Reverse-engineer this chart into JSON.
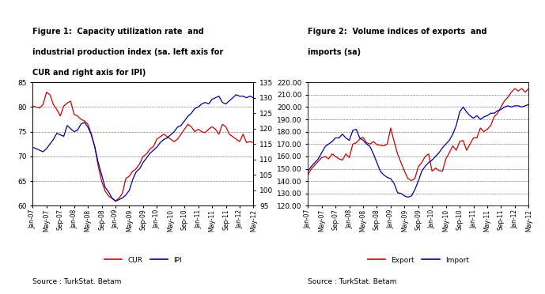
{
  "fig1": {
    "title1": "Figure 1:  Capacity utilization rate  and",
    "title2": "industrial production index (sa. left axis for",
    "title3": "CUR and right axis for IPI)",
    "source": "Source : TurkStat. Betam",
    "x_labels": [
      "Jan-07",
      "May-07",
      "Sep-07",
      "Jan-08",
      "May-08",
      "Sep-08",
      "Jan-09",
      "May-09",
      "Sep-09",
      "Jan-10",
      "May-10",
      "Sep-10",
      "Jan-11",
      "May-11",
      "Sep-11",
      "Jan-12",
      "May-12"
    ],
    "ylim_left": [
      60,
      85
    ],
    "ylim_right": [
      95,
      135
    ],
    "yticks_left": [
      60,
      65,
      70,
      75,
      80,
      85
    ],
    "yticks_right": [
      95,
      100,
      105,
      110,
      115,
      120,
      125,
      130,
      135
    ],
    "cur_color": "#cc0000",
    "ipi_color": "#000099",
    "legend_labels": [
      "CUR",
      "IPI"
    ],
    "CUR": [
      80.2,
      80.0,
      79.8,
      80.5,
      83.0,
      82.5,
      80.5,
      79.5,
      78.2,
      80.2,
      80.8,
      81.2,
      78.5,
      78.2,
      77.5,
      77.2,
      76.5,
      74.5,
      72.0,
      68.0,
      65.0,
      63.0,
      62.0,
      61.5,
      61.0,
      61.5,
      62.5,
      65.5,
      66.0,
      67.0,
      67.5,
      68.5,
      70.0,
      70.5,
      71.5,
      72.0,
      73.5,
      74.0,
      74.5,
      74.0,
      73.5,
      73.0,
      73.5,
      74.5,
      75.5,
      76.5,
      76.0,
      75.0,
      75.5,
      75.0,
      74.8,
      75.5,
      76.0,
      75.5,
      74.5,
      76.5,
      76.0,
      74.5,
      74.0,
      73.5,
      73.0,
      74.5,
      72.8,
      73.0,
      72.8
    ],
    "IPI": [
      114.0,
      113.5,
      113.0,
      112.5,
      113.5,
      115.0,
      116.5,
      118.5,
      118.0,
      117.5,
      121.0,
      120.0,
      119.0,
      119.5,
      121.5,
      122.0,
      120.5,
      118.0,
      114.0,
      109.0,
      105.0,
      101.0,
      99.5,
      97.5,
      96.5,
      97.0,
      97.5,
      98.5,
      100.0,
      103.5,
      106.0,
      107.0,
      109.0,
      110.5,
      112.0,
      113.0,
      114.0,
      115.5,
      116.5,
      117.0,
      118.0,
      119.0,
      120.5,
      121.0,
      122.5,
      124.0,
      125.0,
      126.5,
      127.0,
      128.0,
      128.5,
      128.0,
      129.5,
      130.0,
      130.5,
      128.5,
      128.0,
      129.0,
      130.0,
      131.0,
      130.5,
      130.5,
      130.0,
      130.5,
      130.0
    ]
  },
  "fig2": {
    "title1": "Figure 2:  Volume indices of exports  and",
    "title2": "imports (sa)",
    "source": "Source : TurkStat. Betam",
    "x_labels": [
      "Jan-07",
      "May-07",
      "Sep-07",
      "Jan-08",
      "May-08",
      "Sep-08",
      "Jan-09",
      "May-09",
      "Sep-09",
      "Jan-10",
      "May-10",
      "Sep-10",
      "Jan-11",
      "May-11",
      "Sep-11",
      "Jan-12",
      "May-12"
    ],
    "ylim": [
      120.0,
      220.0
    ],
    "yticks": [
      120.0,
      130.0,
      140.0,
      150.0,
      160.0,
      170.0,
      180.0,
      190.0,
      200.0,
      210.0,
      220.0
    ],
    "export_color": "#cc0000",
    "import_color": "#000099",
    "legend_labels": [
      "Export",
      "Import"
    ],
    "Export": [
      145.0,
      150.0,
      153.0,
      156.0,
      159.0,
      160.0,
      158.0,
      162.0,
      160.0,
      158.0,
      157.0,
      162.0,
      159.0,
      170.0,
      171.0,
      174.0,
      175.5,
      171.0,
      170.0,
      172.0,
      169.5,
      169.0,
      168.5,
      170.0,
      183.0,
      172.0,
      162.0,
      155.0,
      148.0,
      142.0,
      140.5,
      142.0,
      151.5,
      155.0,
      160.0,
      162.0,
      148.0,
      150.5,
      148.5,
      148.0,
      158.0,
      163.0,
      168.5,
      165.0,
      172.0,
      173.0,
      165.0,
      170.0,
      175.0,
      175.0,
      183.0,
      180.0,
      182.0,
      185.0,
      192.0,
      195.0,
      200.0,
      205.0,
      208.0,
      212.0,
      215.0,
      213.0,
      215.0,
      212.0,
      215.0
    ],
    "Import": [
      148.0,
      152.0,
      155.0,
      158.0,
      163.0,
      168.0,
      170.0,
      172.0,
      175.0,
      175.0,
      178.0,
      175.0,
      173.0,
      181.0,
      182.0,
      175.0,
      173.0,
      170.0,
      168.0,
      162.0,
      155.0,
      148.0,
      145.0,
      143.0,
      142.0,
      138.0,
      130.5,
      130.0,
      128.0,
      127.0,
      128.0,
      133.0,
      140.0,
      148.0,
      152.0,
      155.0,
      157.0,
      160.0,
      163.0,
      167.0,
      170.0,
      173.0,
      178.0,
      185.0,
      196.0,
      200.0,
      196.0,
      193.0,
      191.0,
      193.0,
      190.0,
      192.0,
      193.0,
      195.0,
      195.0,
      197.0,
      198.0,
      200.0,
      201.0,
      200.0,
      201.0,
      201.0,
      200.0,
      201.0,
      202.0
    ]
  }
}
